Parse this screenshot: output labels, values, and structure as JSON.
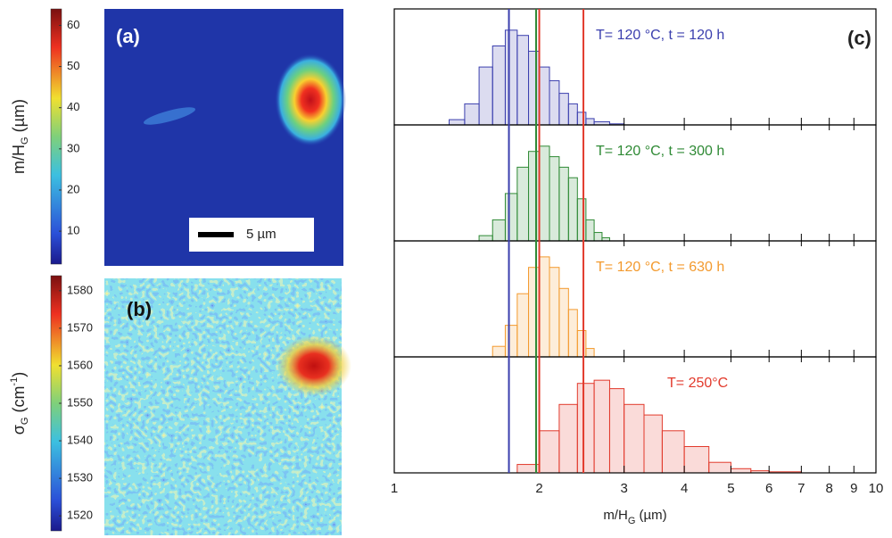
{
  "chart_data": [
    {
      "type": "heatmap",
      "label": "(a)",
      "colorbar_label": {
        "main": "m/H",
        "sub": "G",
        "rest": " (µm)"
      },
      "clim": [
        2,
        64
      ],
      "cticks": [
        10,
        20,
        30,
        40,
        50,
        60
      ],
      "scale_bar": "5 µm"
    },
    {
      "type": "heatmap",
      "label": "(b)",
      "colorbar_label": {
        "main": "σ",
        "sub": "G",
        "rest": " (cm",
        "sup": "-1",
        "end": ")"
      },
      "clim": [
        1516,
        1584
      ],
      "cticks": [
        1520,
        1530,
        1540,
        1550,
        1560,
        1570,
        1580
      ]
    },
    {
      "type": "histogram",
      "label": "(c)",
      "xlog": true,
      "xlabel": {
        "main": "m/H",
        "sub": "G",
        "rest": " (µm)"
      },
      "xlim": [
        1,
        10
      ],
      "xticks": [
        1,
        2,
        3,
        4,
        5,
        6,
        7,
        8,
        9,
        10
      ],
      "ylim": [
        0,
        100
      ],
      "series": [
        {
          "name": "T= 120 °C, t = 120 h",
          "color": "#3b3fae",
          "bins": [
            1.3,
            1.4,
            1.5,
            1.6,
            1.7,
            1.8,
            1.9,
            2.0,
            2.1,
            2.2,
            2.3,
            2.4,
            2.5,
            2.6,
            2.8,
            3.0
          ],
          "values": [
            5,
            20,
            55,
            75,
            90,
            85,
            70,
            55,
            42,
            30,
            20,
            12,
            6,
            3,
            1
          ]
        },
        {
          "name": "T= 120 °C, t = 300 h",
          "color": "#2f8a35",
          "bins": [
            1.5,
            1.6,
            1.7,
            1.8,
            1.9,
            2.0,
            2.1,
            2.2,
            2.3,
            2.4,
            2.5,
            2.6,
            2.7,
            2.8
          ],
          "values": [
            5,
            20,
            45,
            70,
            85,
            90,
            80,
            70,
            60,
            40,
            20,
            8,
            3
          ]
        },
        {
          "name": "T= 120 °C, t = 630 h",
          "color": "#f39a2e",
          "bins": [
            1.6,
            1.7,
            1.8,
            1.9,
            2.0,
            2.1,
            2.2,
            2.3,
            2.4,
            2.5,
            2.6
          ],
          "values": [
            10,
            30,
            60,
            85,
            95,
            85,
            65,
            45,
            25,
            8
          ]
        },
        {
          "name": "T= 250°C",
          "color": "#e23a2c",
          "bins": [
            1.8,
            2.0,
            2.2,
            2.4,
            2.6,
            2.8,
            3.0,
            3.3,
            3.6,
            4.0,
            4.5,
            5.0,
            5.5,
            6.0,
            7.0
          ],
          "values": [
            8,
            40,
            65,
            85,
            88,
            80,
            65,
            55,
            40,
            25,
            10,
            4,
            2,
            1
          ]
        }
      ],
      "vlines": [
        {
          "value": 1.73,
          "color": "#3b3fae"
        },
        {
          "value": 1.97,
          "color": "#2f8a35"
        },
        {
          "value": 2.0,
          "color": "#e23a2c"
        },
        {
          "value": 2.47,
          "color": "#e23a2c"
        }
      ]
    }
  ]
}
